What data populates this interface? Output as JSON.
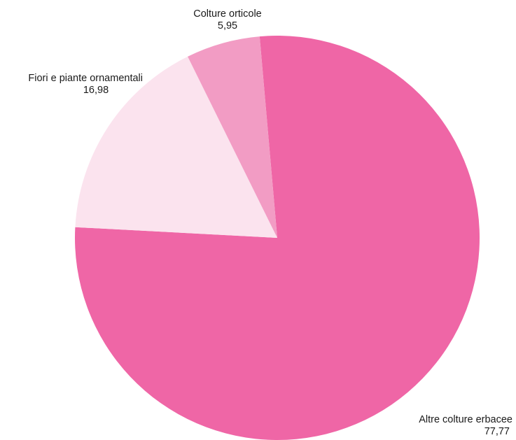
{
  "chart_data": {
    "type": "pie",
    "title": "",
    "slices": [
      {
        "label": "Altre colture erbacee",
        "value": 77.77,
        "value_label": "77,77",
        "color": "#ef66a6"
      },
      {
        "label": "Fiori e piante ornamentali",
        "value": 16.98,
        "value_label": "16,98",
        "color": "#fbe3ee"
      },
      {
        "label": "Colture orticole",
        "value": 5.95,
        "value_label": "5,95",
        "color": "#f29cc4"
      }
    ],
    "legend": "none",
    "labels_position": "outside"
  }
}
